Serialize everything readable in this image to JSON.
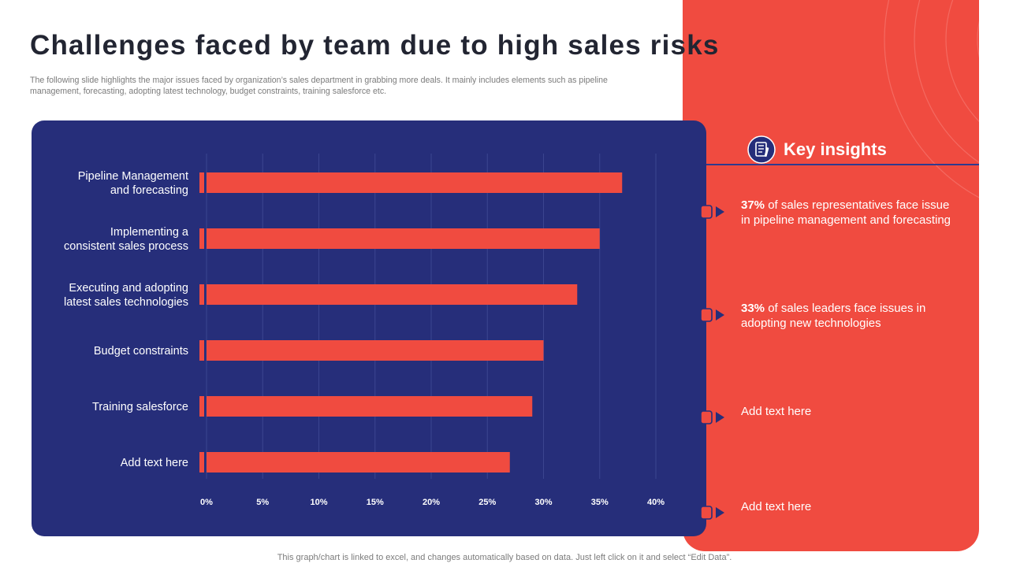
{
  "title": "Challenges faced by team due to high sales risks",
  "subtitle": "The following slide highlights the major issues faced by organization’s sales department in grabbing more deals. It mainly includes elements such as pipeline management, forecasting, adopting latest technology, budget constraints, training salesforce etc.",
  "chart_data": {
    "type": "bar",
    "orientation": "horizontal",
    "categories": [
      [
        "Pipeline Management",
        "and forecasting"
      ],
      [
        "Implementing a",
        "consistent sales process"
      ],
      [
        "Executing and adopting",
        "latest sales technologies"
      ],
      [
        "Budget constraints"
      ],
      [
        "Training salesforce"
      ],
      [
        "Add text here"
      ]
    ],
    "values": [
      37,
      35,
      33,
      30,
      29,
      27
    ],
    "xlim": [
      0,
      40
    ],
    "xticks": [
      0,
      5,
      10,
      15,
      20,
      25,
      30,
      35,
      40
    ],
    "tick_suffix": "%",
    "grid": true,
    "colors": {
      "bar": "#f04b40",
      "background": "#262e7a",
      "grid": "#3b4590",
      "text": "#ffffff"
    }
  },
  "insights": {
    "title": "Key insights",
    "items": [
      {
        "highlight": "37%",
        "text": " of sales representatives face issue in pipeline management and forecasting"
      },
      {
        "highlight": "33%",
        "text": " of sales leaders face issues in adopting new technologies"
      },
      {
        "highlight": "",
        "text": "Add text here"
      },
      {
        "highlight": "",
        "text": "Add text here"
      }
    ]
  },
  "footer": "This graph/chart is linked to excel, and changes automatically based on data. Just left click on it and select “Edit Data”."
}
